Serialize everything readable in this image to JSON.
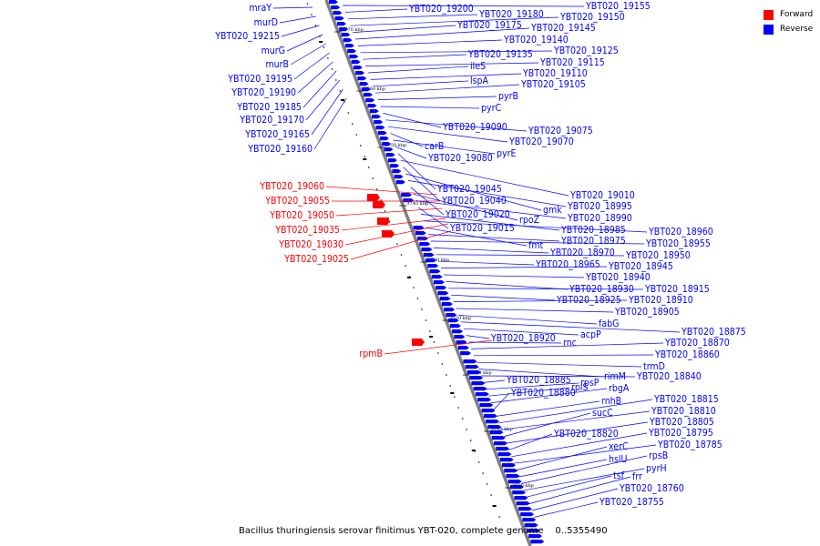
{
  "legend": {
    "items": [
      {
        "label": "Forward",
        "color": "#ff0000"
      },
      {
        "label": "Reverse",
        "color": "#0000ff"
      }
    ]
  },
  "caption": {
    "title": "Bacillus thuringiensis serovar finitimus YBT-020, complete genome",
    "range": "0..5355490"
  },
  "scale_ticks": [
    "3770 kbp",
    "3760 kbp",
    "3750 kbp",
    "3740 kbp",
    "3730 kbp",
    "3720 kbp",
    "3710 kbp",
    "3700 kbp",
    "3690 kbp"
  ],
  "colors": {
    "forward": "#ff0000",
    "reverse": "#0000ff",
    "backbone": "#808080"
  },
  "genes_left_reverse": [
    "mraY",
    "murD",
    "YBT020_19215",
    "murG",
    "murB",
    "YBT020_19195",
    "YBT020_19190",
    "YBT020_19185",
    "YBT020_19170",
    "YBT020_19165",
    "YBT020_19160"
  ],
  "genes_left_forward": [
    "YBT020_19060",
    "YBT020_19055",
    "YBT020_19050",
    "YBT020_19035",
    "YBT020_19030",
    "YBT020_19025",
    "rpmB"
  ],
  "genes_right": [
    "YBT020_19155",
    "YBT020_19200",
    "YBT020_19180",
    "YBT020_19150",
    "YBT020_19175",
    "YBT020_19145",
    "YBT020_19140",
    "YBT020_19125",
    "YBT020_19135",
    "YBT020_19115",
    "ileS",
    "YBT020_19110",
    "lspA",
    "YBT020_19105",
    "pyrB",
    "pyrC",
    "YBT020_19090",
    "YBT020_19075",
    "YBT020_19070",
    "carB",
    "pyrE",
    "YBT020_19080",
    "YBT020_19045",
    "YBT020_19010",
    "YBT020_19040",
    "gmk",
    "YBT020_18995",
    "YBT020_19020",
    "rpoZ",
    "YBT020_18990",
    "YBT020_19015",
    "YBT020_18985",
    "YBT020_18960",
    "fmt",
    "YBT020_18975",
    "YBT020_18955",
    "YBT020_18970",
    "YBT020_18950",
    "YBT020_18965",
    "YBT020_18945",
    "YBT020_18940",
    "YBT020_18930",
    "YBT020_18915",
    "YBT020_18925",
    "YBT020_18910",
    "YBT020_18905",
    "fabG",
    "YBT020_18875",
    "acpP",
    "YBT020_18920",
    "rnc",
    "YBT020_18870",
    "YBT020_18860",
    "trmD",
    "rimM",
    "YBT020_18840",
    "YBT020_18885",
    "rpsP",
    "rplS",
    "rbgA",
    "YBT020_18880",
    "rnhB",
    "YBT020_18815",
    "YBT020_18810",
    "sucC",
    "YBT020_18805",
    "YBT020_18820",
    "YBT020_18795",
    "YBT020_18785",
    "xerC",
    "hslU",
    "rpsB",
    "pyrH",
    "tsf",
    "frr",
    "YBT020_18760",
    "YBT020_18755"
  ]
}
